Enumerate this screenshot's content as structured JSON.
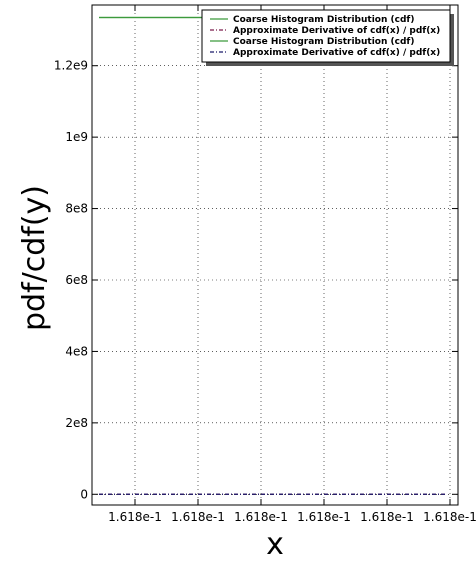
{
  "chart_data": {
    "type": "line",
    "title": "",
    "xlabel": "x",
    "ylabel": "pdf/cdf(y)",
    "grid": true,
    "legend_position": "top-right",
    "x_tick_labels": [
      "1.618e-1",
      "1.618e-1",
      "1.618e-1",
      "1.618e-1",
      "1.618e-1",
      "1.618e-1"
    ],
    "y_ticks": [
      0,
      200000000,
      400000000,
      600000000,
      800000000,
      1000000000,
      1200000000
    ],
    "y_tick_labels": [
      "0",
      "2e8",
      "4e8",
      "6e8",
      "8e8",
      "1e9",
      "1.2e9"
    ],
    "ylim": [
      -30000000,
      1370000000
    ],
    "series": [
      {
        "name": "Coarse Histogram Distribution (cdf)",
        "color": "#3c9a3c",
        "style": "solid",
        "y_values": [
          1335000000,
          1335000000
        ]
      },
      {
        "name": "Approximate Derivative of cdf(x) / pdf(x)",
        "color": "#7a1a4a",
        "style": "dashdot",
        "y_values": [
          0,
          0
        ]
      },
      {
        "name": "Coarse Histogram Distribution (cdf)",
        "color": "#3c9a3c",
        "style": "solid",
        "y_values": [
          1335000000,
          1335000000
        ]
      },
      {
        "name": "Approximate Derivative of cdf(x) / pdf(x)",
        "color": "#1a1a6a",
        "style": "dashdot",
        "y_values": [
          0,
          0
        ]
      }
    ]
  }
}
